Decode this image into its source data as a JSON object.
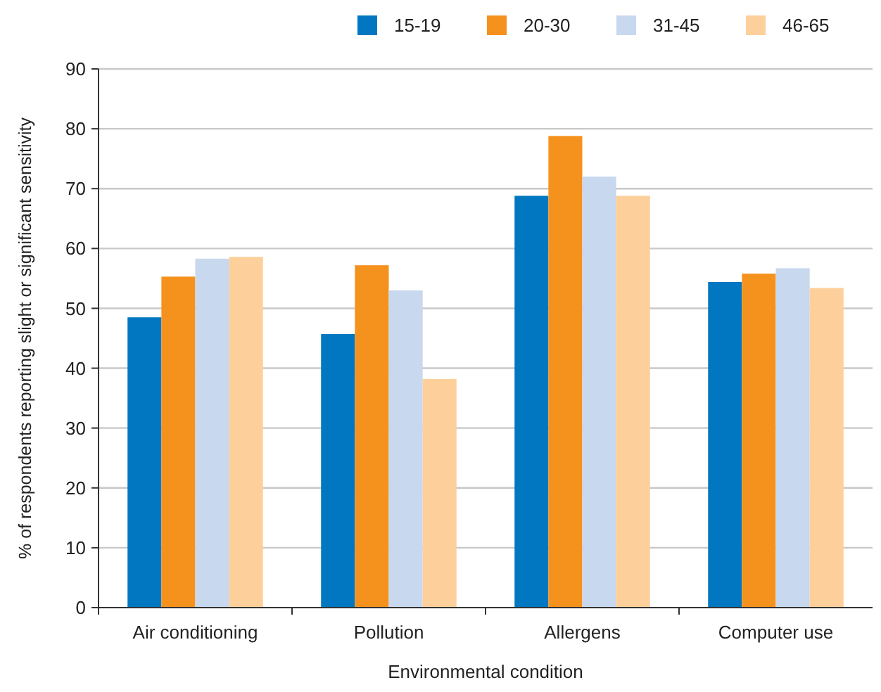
{
  "chart_data": {
    "type": "bar",
    "xlabel": "Environmental condition",
    "ylabel": "% of respondents reporting slight or significant sensitivity",
    "categories": [
      "Air conditioning",
      "Pollution",
      "Allergens",
      "Computer use"
    ],
    "series": [
      {
        "name": "15-19",
        "color": "#0077c0",
        "values": [
          48.5,
          45.7,
          68.8,
          54.4
        ]
      },
      {
        "name": "20-30",
        "color": "#f5921e",
        "values": [
          55.3,
          57.2,
          78.8,
          55.8
        ]
      },
      {
        "name": "31-45",
        "color": "#c8d8ee",
        "values": [
          58.3,
          53,
          72,
          56.7
        ]
      },
      {
        "name": "46-65",
        "color": "#fdd09b",
        "values": [
          58.6,
          38.2,
          68.8,
          53.4
        ]
      }
    ],
    "ylim": [
      0,
      90
    ],
    "yticks": [
      0,
      10,
      20,
      30,
      40,
      50,
      60,
      70,
      80,
      90
    ],
    "grid": "y",
    "legend": "top right"
  }
}
